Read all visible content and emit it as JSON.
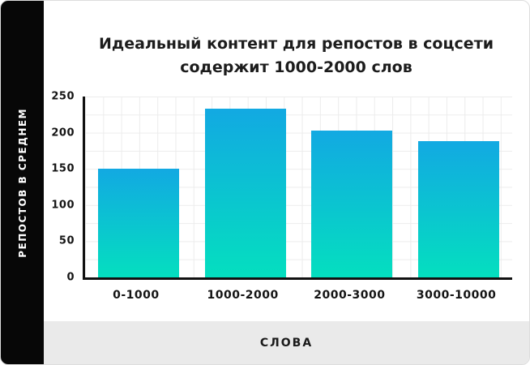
{
  "card": {
    "title_lines": [
      "Идеальный контент для репостов в соцсети",
      "содержит 1000-2000 слов"
    ],
    "y_axis_title": "РЕПОСТОВ В СРЕДНЕМ",
    "x_axis_title": "СЛОВА"
  },
  "colors": {
    "bar_gradient_top": "#12a9e2",
    "bar_gradient_bottom": "#04dfbf",
    "sidebar_bg": "#070707",
    "footer_bg": "#eaeaea",
    "grid_line": "#ececec",
    "axis": "#111111"
  },
  "chart_data": {
    "type": "bar",
    "title": "Идеальный контент для репостов в соцсети содержит 1000-2000 слов",
    "categories": [
      "0-1000",
      "1000-2000",
      "2000-3000",
      "3000-10000"
    ],
    "values": [
      150,
      233,
      203,
      188
    ],
    "xlabel": "СЛОВА",
    "ylabel": "РЕПОСТОВ В СРЕДНЕМ",
    "yticks": [
      0,
      50,
      100,
      150,
      200,
      250
    ],
    "ylim": [
      0,
      250
    ],
    "grid": true,
    "legend_position": "none",
    "bar_color": "gradient #12a9e2 to #04dfbf (top to bottom)"
  }
}
